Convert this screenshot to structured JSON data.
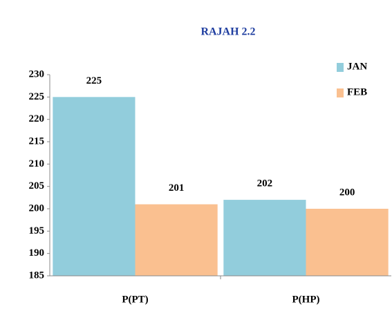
{
  "chart_data": {
    "type": "bar",
    "title": "RAJAH 2.2",
    "categories": [
      "P(PT)",
      "P(HP)"
    ],
    "series": [
      {
        "name": "JAN",
        "color": "#92cddc",
        "values": [
          225,
          202
        ]
      },
      {
        "name": "FEB",
        "color": "#fac090",
        "values": [
          201,
          200
        ]
      }
    ],
    "ylim": [
      185,
      230
    ],
    "yticks": [
      185,
      190,
      195,
      200,
      205,
      210,
      215,
      220,
      225,
      230
    ],
    "grid": false,
    "legend": "top-right",
    "data_labels": true
  }
}
